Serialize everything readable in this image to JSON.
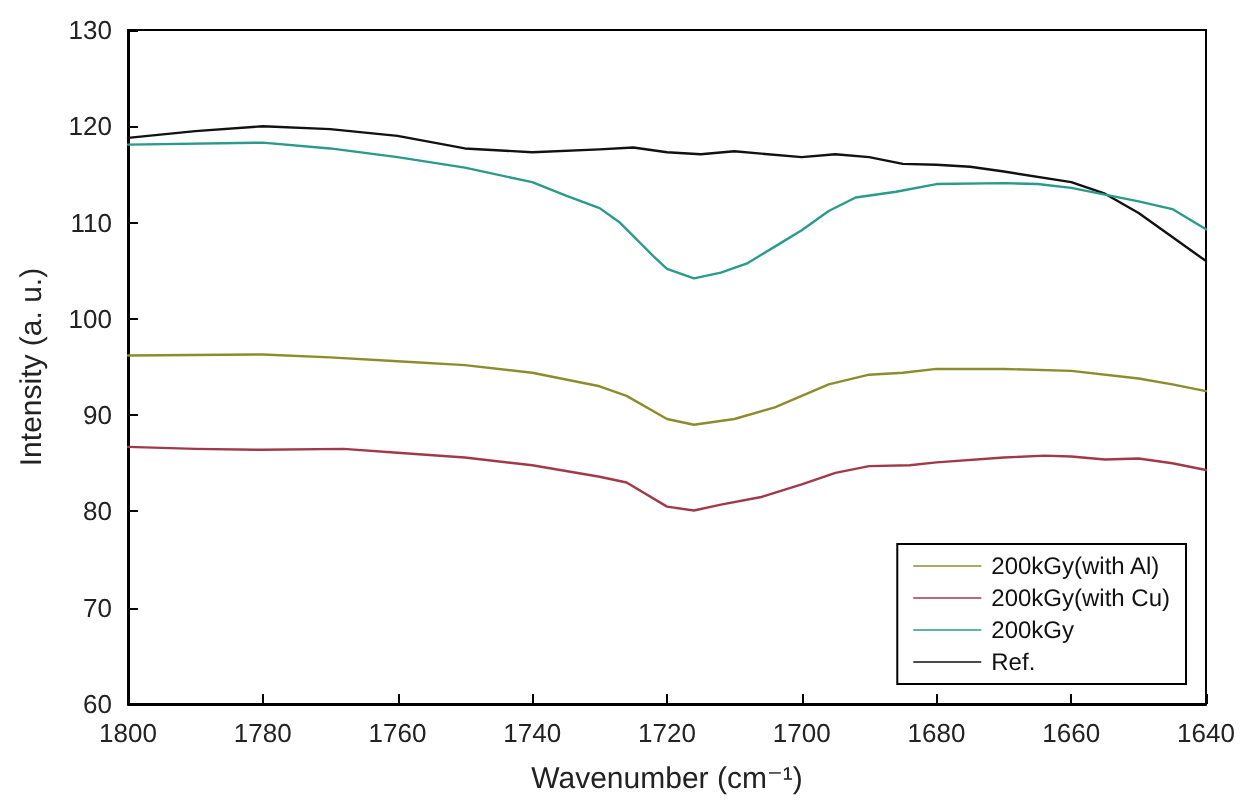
{
  "chart_data": {
    "type": "line",
    "xlabel": "Wavenumber (cm⁻¹)",
    "ylabel": "Intensity (a. u.)",
    "xlim": [
      1800,
      1640
    ],
    "xticks": [
      1800,
      1780,
      1760,
      1740,
      1720,
      1700,
      1680,
      1660,
      1640
    ],
    "ylim": [
      60,
      130
    ],
    "yticks": [
      60,
      70,
      80,
      90,
      100,
      110,
      120,
      130
    ],
    "grid": false,
    "legend": "bottom right",
    "marker": "none",
    "line_style": "solid",
    "series": [
      {
        "name": "200kGy(with Al)",
        "color": "#8c8c2c",
        "x": [
          1800,
          1780,
          1770,
          1760,
          1750,
          1740,
          1730,
          1726,
          1720,
          1716,
          1710,
          1704,
          1700,
          1696,
          1690,
          1685,
          1680,
          1670,
          1660,
          1650,
          1645,
          1640
        ],
        "values": [
          96.2,
          96.3,
          96.0,
          95.6,
          95.2,
          94.4,
          93,
          92,
          89.6,
          89,
          89.6,
          90.8,
          92,
          93.2,
          94.2,
          94.4,
          94.8,
          94.8,
          94.6,
          93.8,
          93.2,
          92.5
        ]
      },
      {
        "name": "200kGy(with Cu)",
        "color": "#a03a4a",
        "x": [
          1800,
          1790,
          1780,
          1768,
          1760,
          1750,
          1740,
          1730,
          1726,
          1720,
          1716,
          1712,
          1706,
          1700,
          1695,
          1690,
          1684,
          1680,
          1670,
          1664,
          1660,
          1655,
          1650,
          1645,
          1640
        ],
        "values": [
          86.7,
          86.5,
          86.4,
          86.5,
          86.1,
          85.6,
          84.8,
          83.6,
          83,
          80.5,
          80.1,
          80.7,
          81.5,
          82.8,
          84,
          84.7,
          84.8,
          85.1,
          85.6,
          85.8,
          85.7,
          85.4,
          85.5,
          85,
          84.3
        ]
      },
      {
        "name": "200kGy",
        "color": "#2a9a8a",
        "x": [
          1800,
          1780,
          1770,
          1760,
          1750,
          1740,
          1735,
          1730,
          1727,
          1722,
          1720,
          1716,
          1712,
          1708,
          1704,
          1700,
          1696,
          1692,
          1686,
          1680,
          1670,
          1665,
          1660,
          1650,
          1645,
          1640
        ],
        "values": [
          118.1,
          118.3,
          117.7,
          116.8,
          115.7,
          114.2,
          112.8,
          111.5,
          110,
          106.5,
          105.2,
          104.2,
          104.8,
          105.8,
          107.5,
          109.2,
          111.2,
          112.6,
          113.2,
          114,
          114.1,
          114,
          113.6,
          112.2,
          111.4,
          109.3
        ]
      },
      {
        "name": "Ref.",
        "color": "#111111",
        "x": [
          1800,
          1790,
          1780,
          1770,
          1760,
          1750,
          1740,
          1730,
          1725,
          1720,
          1715,
          1710,
          1700,
          1695,
          1690,
          1685,
          1680,
          1675,
          1670,
          1660,
          1655,
          1650,
          1645,
          1640
        ],
        "values": [
          118.8,
          119.5,
          120,
          119.7,
          119,
          117.7,
          117.3,
          117.6,
          117.8,
          117.3,
          117.1,
          117.4,
          116.8,
          117.1,
          116.8,
          116.1,
          116,
          115.8,
          115.3,
          114.2,
          113,
          111,
          108.5,
          106
        ]
      }
    ]
  }
}
